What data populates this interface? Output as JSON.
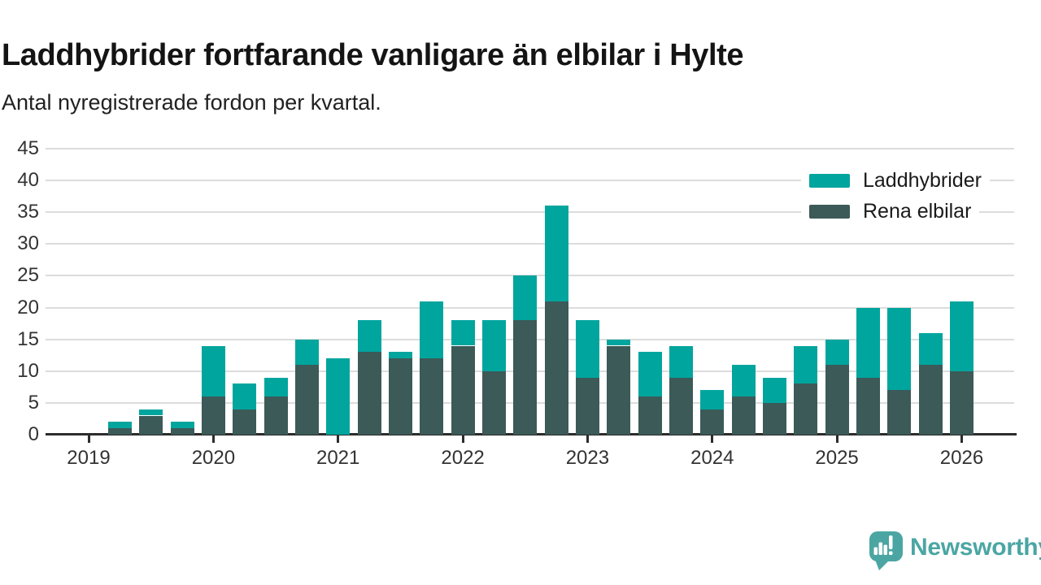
{
  "header": {
    "title": "Laddhybrider fortfarande vanligare än elbilar i Hylte",
    "subtitle": "Antal nyregistrerade fordon per kvartal."
  },
  "chart_data": {
    "type": "bar",
    "stacked": true,
    "title": "Laddhybrider fortfarande vanligare än elbilar i Hylte",
    "subtitle": "Antal nyregistrerade fordon per kvartal.",
    "categories": [
      "2019-K1",
      "2019-K2",
      "2019-K3",
      "2019-K4",
      "2020-K1",
      "2020-K2",
      "2020-K3",
      "2020-K4",
      "2021-K1",
      "2021-K2",
      "2021-K3",
      "2021-K4",
      "2022-K1",
      "2022-K2",
      "2022-K3",
      "2022-K4",
      "2023-K1",
      "2023-K2",
      "2023-K3",
      "2023-K4",
      "2024-K1",
      "2024-K2",
      "2024-K3",
      "2024-K4",
      "2025-K1",
      "2025-K2",
      "2025-K3",
      "2025-K4",
      "2026-K1"
    ],
    "series": [
      {
        "name": "Laddhybrider",
        "color": "#00a59e",
        "values": [
          0,
          1,
          1,
          1,
          8,
          4,
          3,
          4,
          12,
          5,
          1,
          9,
          4,
          8,
          7,
          15,
          9,
          1,
          7,
          5,
          3,
          5,
          4,
          6,
          4,
          11,
          13,
          5,
          11
        ]
      },
      {
        "name": "Rena elbilar",
        "color": "#3b5a58",
        "values": [
          0,
          1,
          3,
          1,
          6,
          4,
          6,
          11,
          0,
          13,
          12,
          12,
          14,
          10,
          18,
          21,
          9,
          14,
          6,
          9,
          4,
          6,
          5,
          8,
          11,
          9,
          7,
          11,
          10
        ]
      }
    ],
    "stack_order_bottom_to_top": [
      "Rena elbilar",
      "Laddhybrider"
    ],
    "totals": [
      0,
      2,
      4,
      2,
      14,
      8,
      9,
      15,
      12,
      18,
      13,
      21,
      18,
      18,
      25,
      36,
      18,
      15,
      13,
      14,
      7,
      11,
      9,
      14,
      15,
      20,
      20,
      16,
      21
    ],
    "ylim": [
      0,
      45
    ],
    "yticks": [
      0,
      5,
      10,
      15,
      20,
      25,
      30,
      35,
      40,
      45
    ],
    "x_year_ticks": [
      {
        "label": "2019",
        "quarter_index": 0
      },
      {
        "label": "2020",
        "quarter_index": 4
      },
      {
        "label": "2021",
        "quarter_index": 8
      },
      {
        "label": "2022",
        "quarter_index": 12
      },
      {
        "label": "2023",
        "quarter_index": 16
      },
      {
        "label": "2024",
        "quarter_index": 20
      },
      {
        "label": "2025",
        "quarter_index": 24
      },
      {
        "label": "2026",
        "quarter_index": 28
      }
    ],
    "grid": "horizontal",
    "legend_position": "top-right",
    "colors": {
      "axis": "#2c2c2c",
      "gridline": "#dcdcdc",
      "tick_label": "#333333"
    }
  },
  "legend": {
    "items": [
      {
        "label": "Laddhybrider",
        "color": "#00a59e"
      },
      {
        "label": "Rena elbilar",
        "color": "#3b5a58"
      }
    ]
  },
  "branding": {
    "logo_text": "Newsworthy",
    "logo_color": "#4ba6a3",
    "logo_icon": "bar-chart-speech-bubble-icon"
  }
}
